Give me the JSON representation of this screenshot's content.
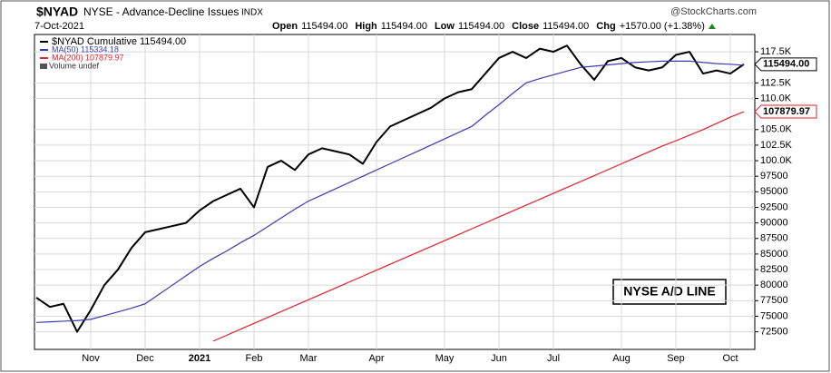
{
  "chart_data": {
    "type": "line",
    "symbol": "$NYAD",
    "title": "NYSE - Advance-Decline Issues",
    "exchange": "INDX",
    "credit": "@StockCharts.com",
    "date": "7-Oct-2021",
    "quote": [
      {
        "label": "Open",
        "value": "115494.00"
      },
      {
        "label": "High",
        "value": "115494.00"
      },
      {
        "label": "Low",
        "value": "115494.00"
      },
      {
        "label": "Close",
        "value": "115494.00"
      },
      {
        "label": "Chg",
        "value": "+1570.00 (+1.38%)"
      }
    ],
    "annotation": "NYSE A/D LINE",
    "legend_extra": "Volume undef",
    "grid": true,
    "ylim": [
      70400,
      119700
    ],
    "yticks": [
      {
        "value": 117500,
        "label": "117.5K"
      },
      {
        "value": 112500,
        "label": "112.5K"
      },
      {
        "value": 110000,
        "label": "110.0K"
      },
      {
        "value": 105000,
        "label": "105.0K"
      },
      {
        "value": 102500,
        "label": "102.5K"
      },
      {
        "value": 100000,
        "label": "100.0K"
      },
      97500,
      95000,
      92500,
      90000,
      87500,
      85000,
      82500,
      80000,
      77500,
      75000,
      72500
    ],
    "categories": [
      null,
      null,
      null,
      null,
      "Nov",
      null,
      null,
      null,
      "Dec",
      null,
      null,
      null,
      "2021",
      null,
      null,
      null,
      "Feb",
      null,
      null,
      null,
      "Mar",
      null,
      null,
      null,
      null,
      "Apr",
      null,
      null,
      null,
      null,
      "May",
      null,
      null,
      null,
      "Jun",
      null,
      null,
      null,
      "Jul",
      null,
      null,
      null,
      null,
      "Aug",
      null,
      null,
      null,
      "Sep",
      null,
      null,
      null,
      "Oct",
      null
    ],
    "series": [
      {
        "name": "$NYAD Cumulative 115494.00",
        "color": "#000000",
        "width": 2,
        "last_label": "115494.00",
        "values": [
          78000,
          76500,
          77000,
          72500,
          76000,
          80000,
          82500,
          86000,
          88500,
          89000,
          89500,
          90000,
          92000,
          93500,
          94500,
          95500,
          92500,
          99000,
          100000,
          98500,
          101000,
          102000,
          101500,
          101000,
          99500,
          103000,
          105500,
          106500,
          107500,
          108500,
          110000,
          111000,
          111500,
          114000,
          116500,
          117500,
          116500,
          118000,
          117500,
          118500,
          115500,
          113000,
          116000,
          116500,
          115000,
          114500,
          115000,
          117000,
          117500,
          114000,
          114500,
          114000,
          115494
        ]
      },
      {
        "name": "MA(50) 115334.18",
        "color": "#3b3bb0",
        "width": 1.2,
        "values": [
          74000,
          74100,
          74200,
          74300,
          74500,
          75100,
          75700,
          76300,
          77000,
          78500,
          80000,
          81500,
          83000,
          84300,
          85500,
          86800,
          88000,
          89400,
          90800,
          92200,
          93500,
          94500,
          95500,
          96500,
          97500,
          98500,
          99500,
          100500,
          101500,
          102500,
          103500,
          104500,
          105500,
          107300,
          109000,
          110800,
          112500,
          113200,
          113800,
          114400,
          115000,
          115200,
          115400,
          115600,
          115800,
          115900,
          116000,
          116000,
          116000,
          115800,
          115600,
          115500,
          115334.18
        ]
      },
      {
        "name": "MA(200) 107879.97",
        "color": "#e0202a",
        "width": 1.2,
        "last_label": "107879.97",
        "values": [
          null,
          null,
          null,
          null,
          null,
          null,
          null,
          null,
          null,
          null,
          null,
          null,
          null,
          71000,
          71950,
          72900,
          73850,
          74800,
          75750,
          76700,
          77650,
          78600,
          79550,
          80500,
          81450,
          82400,
          83350,
          84300,
          85250,
          86200,
          87150,
          88100,
          89050,
          90000,
          90950,
          91900,
          92850,
          93800,
          94750,
          95700,
          96650,
          97600,
          98550,
          99500,
          100450,
          101400,
          102350,
          103200,
          104100,
          105000,
          106000,
          107000,
          107879.97
        ]
      }
    ]
  }
}
